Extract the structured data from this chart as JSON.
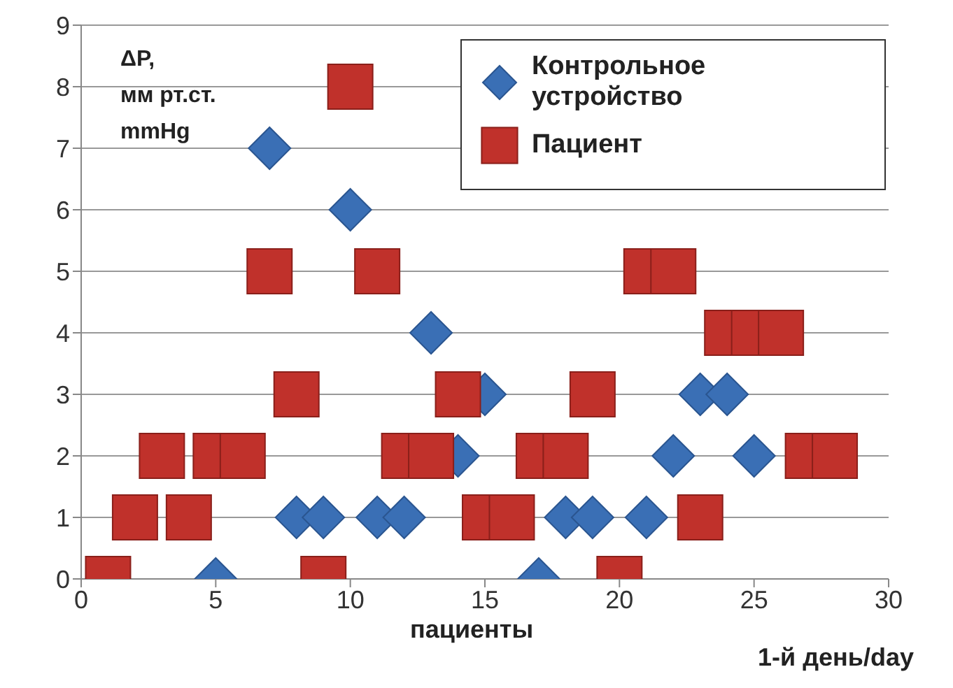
{
  "chart_data": {
    "type": "scatter",
    "ylabel": "ΔP,\nмм рт.ст.\nmmHg",
    "xlabel": "пациенты",
    "annotations": [
      "1-й день/day"
    ],
    "xlim": [
      0,
      30
    ],
    "xticks": [
      0,
      5,
      10,
      15,
      20,
      25,
      30
    ],
    "ylim": [
      0,
      9
    ],
    "yticks": [
      0,
      1,
      2,
      3,
      4,
      5,
      6,
      7,
      8,
      9
    ],
    "grid": "y",
    "legend": "top right",
    "series": [
      {
        "name": "Контрольное устройство",
        "color": "#3a6fb5",
        "marker": "diamond",
        "x": [
          5,
          7,
          8,
          9,
          10,
          11,
          12,
          13,
          14,
          15,
          17,
          18,
          19,
          21,
          22,
          23,
          24,
          25
        ],
        "values": [
          0,
          7,
          1,
          1,
          6,
          1,
          1,
          4,
          2,
          3,
          0,
          1,
          1,
          1,
          2,
          3,
          3,
          2
        ]
      },
      {
        "name": "Пациент",
        "color": "#c0312b",
        "marker": "square",
        "x": [
          1,
          2,
          3,
          4,
          5,
          6,
          7,
          8,
          9,
          10,
          11,
          12,
          13,
          14,
          15,
          16,
          17,
          18,
          19,
          20,
          21,
          22,
          23,
          24,
          25,
          26,
          27,
          28
        ],
        "values": [
          0,
          1,
          2,
          1,
          2,
          2,
          5,
          3,
          0,
          8,
          5,
          2,
          2,
          3,
          1,
          1,
          2,
          2,
          3,
          0,
          5,
          5,
          1,
          4,
          4,
          4,
          2,
          2
        ]
      }
    ]
  }
}
